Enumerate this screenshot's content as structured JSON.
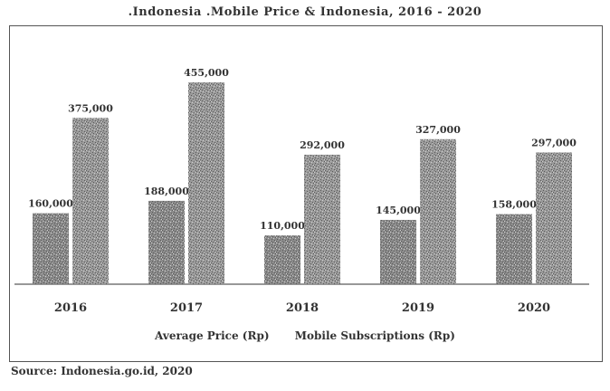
{
  "chart_data": {
    "type": "bar",
    "title": ".Indonesia .Mobile Price & Indonesia, 2016 - 2020",
    "categories": [
      "2016",
      "2017",
      "2018",
      "2019",
      "2020"
    ],
    "series": [
      {
        "name": "Average Price (Rp)",
        "values": [
          160,
          188,
          110,
          145,
          158
        ],
        "labels": [
          "160,000",
          "188,000",
          "110,000",
          "145,000",
          "158,000"
        ]
      },
      {
        "name": "Mobile Subscriptions (Rp)",
        "values": [
          375,
          455,
          292,
          327,
          297
        ],
        "labels": [
          "375,000",
          "455,000",
          "292,000",
          "327,000",
          "297,000"
        ]
      }
    ],
    "ylim": [
      0,
      500
    ],
    "grid": false,
    "legend": "bottom",
    "colors": [
      "#8a8a8a",
      "#9a9a9a"
    ]
  },
  "source": "Source: Indonesia.go.id, 2020"
}
